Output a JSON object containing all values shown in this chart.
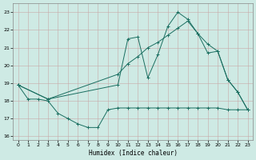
{
  "xlabel": "Humidex (Indice chaleur)",
  "xlim": [
    -0.5,
    23.5
  ],
  "ylim": [
    15.8,
    23.5
  ],
  "yticks": [
    16,
    17,
    18,
    19,
    20,
    21,
    22,
    23
  ],
  "xticks": [
    0,
    1,
    2,
    3,
    4,
    5,
    6,
    7,
    8,
    9,
    10,
    11,
    12,
    13,
    14,
    15,
    16,
    17,
    18,
    19,
    20,
    21,
    22,
    23
  ],
  "bg_color": "#ceeae4",
  "line_color": "#1a6e60",
  "curve1_x": [
    0,
    1,
    2,
    3,
    4,
    5,
    6,
    7,
    8,
    9,
    10,
    11,
    12,
    13,
    14,
    15,
    16,
    17,
    18,
    19,
    20,
    21,
    22,
    23
  ],
  "curve1_y": [
    18.9,
    18.1,
    18.1,
    18.0,
    17.3,
    17.0,
    16.7,
    16.5,
    16.5,
    17.5,
    17.6,
    17.6,
    17.6,
    17.6,
    17.6,
    17.6,
    17.6,
    17.6,
    17.6,
    17.6,
    17.6,
    17.5,
    17.5,
    17.5
  ],
  "curve2_x": [
    0,
    3,
    10,
    11,
    12,
    13,
    14,
    15,
    16,
    17,
    18,
    19,
    20,
    21,
    22,
    23
  ],
  "curve2_y": [
    18.9,
    18.1,
    18.9,
    21.5,
    21.6,
    19.3,
    20.6,
    22.2,
    23.0,
    22.6,
    21.8,
    20.7,
    20.8,
    19.2,
    18.5,
    17.5
  ],
  "curve3_x": [
    0,
    3,
    10,
    11,
    12,
    13,
    14,
    15,
    16,
    17,
    18,
    19,
    20,
    21,
    22,
    23
  ],
  "curve3_y": [
    18.9,
    18.1,
    19.5,
    20.1,
    20.5,
    21.0,
    21.3,
    21.7,
    22.1,
    22.5,
    21.8,
    21.2,
    20.8,
    19.2,
    18.5,
    17.5
  ],
  "figsize": [
    3.2,
    2.0
  ],
  "dpi": 100
}
